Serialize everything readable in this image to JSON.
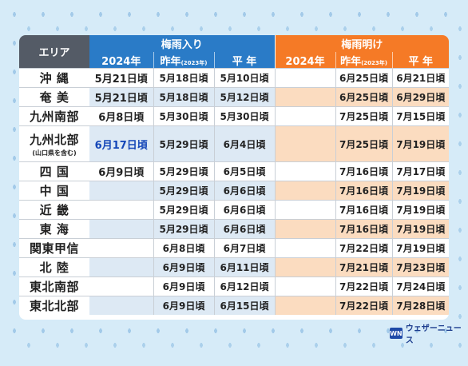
{
  "header": {
    "area": "エリア",
    "tsuyuiri": "梅雨入り",
    "tsuyuake": "梅雨明け",
    "y2024": "2024年",
    "lastyear": "昨年",
    "lastyear_note": "(2023年)",
    "normal": "平 年"
  },
  "rows": [
    {
      "area": "沖 縄",
      "sub": "",
      "e2024": "5月21日頃",
      "elast": "5月18日頃",
      "enorm": "5月10日頃",
      "a2024": "",
      "alast": "6月25日頃",
      "anorm": "6月21日頃"
    },
    {
      "area": "奄 美",
      "sub": "",
      "e2024": "5月21日頃",
      "elast": "5月18日頃",
      "enorm": "5月12日頃",
      "a2024": "",
      "alast": "6月25日頃",
      "anorm": "6月29日頃"
    },
    {
      "area": "九州南部",
      "sub": "",
      "e2024": "6月8日頃",
      "elast": "5月30日頃",
      "enorm": "5月30日頃",
      "a2024": "",
      "alast": "7月25日頃",
      "anorm": "7月15日頃"
    },
    {
      "area": "九州北部",
      "sub": "(山口県を含む)",
      "e2024": "6月17日頃",
      "elast": "5月29日頃",
      "enorm": "6月4日頃",
      "a2024": "",
      "alast": "7月25日頃",
      "anorm": "7月19日頃"
    },
    {
      "area": "四 国",
      "sub": "",
      "e2024": "6月9日頃",
      "elast": "5月29日頃",
      "enorm": "6月5日頃",
      "a2024": "",
      "alast": "7月16日頃",
      "anorm": "7月17日頃"
    },
    {
      "area": "中 国",
      "sub": "",
      "e2024": "",
      "elast": "5月29日頃",
      "enorm": "6月6日頃",
      "a2024": "",
      "alast": "7月16日頃",
      "anorm": "7月19日頃"
    },
    {
      "area": "近 畿",
      "sub": "",
      "e2024": "",
      "elast": "5月29日頃",
      "enorm": "6月6日頃",
      "a2024": "",
      "alast": "7月16日頃",
      "anorm": "7月19日頃"
    },
    {
      "area": "東 海",
      "sub": "",
      "e2024": "",
      "elast": "5月29日頃",
      "enorm": "6月6日頃",
      "a2024": "",
      "alast": "7月16日頃",
      "anorm": "7月19日頃"
    },
    {
      "area": "関東甲信",
      "sub": "",
      "e2024": "",
      "elast": "6月8日頃",
      "enorm": "6月7日頃",
      "a2024": "",
      "alast": "7月22日頃",
      "anorm": "7月19日頃"
    },
    {
      "area": "北 陸",
      "sub": "",
      "e2024": "",
      "elast": "6月9日頃",
      "enorm": "6月11日頃",
      "a2024": "",
      "alast": "7月21日頃",
      "anorm": "7月23日頃"
    },
    {
      "area": "東北南部",
      "sub": "",
      "e2024": "",
      "elast": "6月9日頃",
      "enorm": "6月12日頃",
      "a2024": "",
      "alast": "7月22日頃",
      "anorm": "7月24日頃"
    },
    {
      "area": "東北北部",
      "sub": "",
      "e2024": "",
      "elast": "6月9日頃",
      "enorm": "6月15日頃",
      "a2024": "",
      "alast": "7月22日頃",
      "anorm": "7月28日頃"
    }
  ],
  "logo": {
    "mark": "WN",
    "text": "ウェザーニュース"
  },
  "colors": {
    "header_dark": "#545b66",
    "tsuyuiri_blue": "#2a7bc7",
    "tsuyuake_orange": "#f57a26",
    "highlight_text": "#1547b8"
  }
}
